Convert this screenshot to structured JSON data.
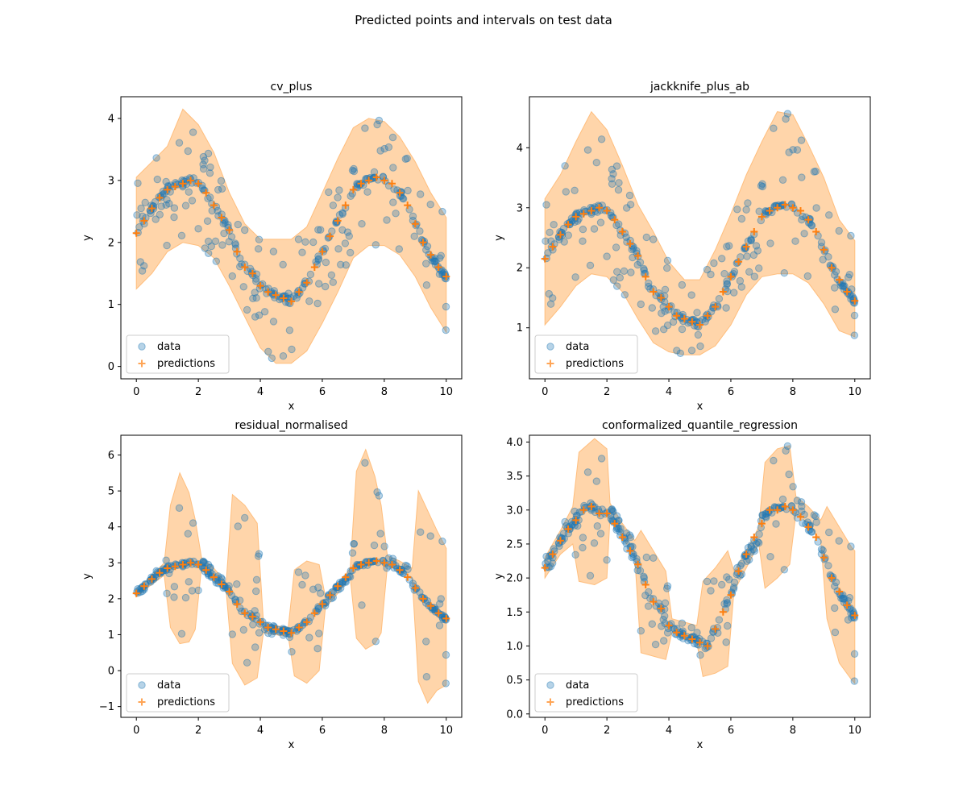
{
  "figure": {
    "suptitle": "Predicted points and intervals on test data"
  },
  "colors": {
    "data": "#1f77b4",
    "predictions": "#ff7f0e",
    "band": "#ffbe7d"
  },
  "chart_data": [
    {
      "type": "scatter",
      "title": "cv_plus",
      "xlabel": "x",
      "ylabel": "y",
      "xlim": [
        -0.5,
        10.5
      ],
      "ylim": [
        -0.2,
        4.35
      ],
      "xticks": [
        0,
        2,
        4,
        6,
        8,
        10
      ],
      "yticks": [
        0,
        1,
        2,
        3,
        4
      ],
      "legend": {
        "position": "lower-left",
        "entries": [
          "data",
          "predictions"
        ]
      },
      "band": {
        "x": [
          0,
          0.5,
          1,
          1.5,
          2,
          2.5,
          3,
          3.5,
          4,
          4.5,
          5,
          5.5,
          6,
          6.5,
          7,
          7.5,
          8,
          8.5,
          9,
          9.5,
          10
        ],
        "lower": [
          1.25,
          1.5,
          1.85,
          2.0,
          1.95,
          1.75,
          1.3,
          0.8,
          0.3,
          0.05,
          0.05,
          0.25,
          0.7,
          1.2,
          1.75,
          1.95,
          1.95,
          1.8,
          1.45,
          0.95,
          0.55
        ],
        "upper": [
          3.05,
          3.3,
          3.55,
          4.15,
          3.9,
          3.45,
          2.8,
          2.3,
          2.05,
          2.05,
          2.05,
          2.25,
          2.8,
          3.35,
          3.85,
          4.0,
          3.95,
          3.7,
          3.3,
          2.8,
          2.4
        ]
      },
      "predictions": {
        "x": [
          0,
          0.25,
          0.5,
          0.75,
          1,
          1.25,
          1.5,
          1.75,
          2,
          2.25,
          2.5,
          2.75,
          3,
          3.25,
          3.5,
          3.75,
          4,
          4.25,
          4.5,
          4.75,
          5,
          5.25,
          5.5,
          5.75,
          6,
          6.25,
          6.5,
          6.75,
          7,
          7.25,
          7.5,
          7.75,
          8,
          8.25,
          8.5,
          8.75,
          9,
          9.25,
          9.5,
          9.75,
          10
        ],
        "y": [
          2.15,
          2.35,
          2.55,
          2.72,
          2.85,
          2.9,
          2.95,
          3.0,
          2.95,
          2.8,
          2.6,
          2.4,
          2.2,
          1.85,
          1.6,
          1.5,
          1.3,
          1.2,
          1.15,
          1.1,
          1.05,
          1.2,
          1.35,
          1.6,
          1.85,
          2.1,
          2.35,
          2.6,
          2.85,
          2.95,
          3.0,
          3.05,
          3.0,
          2.95,
          2.8,
          2.6,
          2.3,
          2.0,
          1.8,
          1.6,
          1.45
        ]
      }
    },
    {
      "type": "scatter",
      "title": "jackknife_plus_ab",
      "xlabel": "x",
      "ylabel": "y",
      "xlim": [
        -0.5,
        10.5
      ],
      "ylim": [
        0.15,
        4.85
      ],
      "xticks": [
        0,
        2,
        4,
        6,
        8,
        10
      ],
      "yticks": [
        1,
        2,
        3,
        4
      ],
      "legend": {
        "position": "lower-left",
        "entries": [
          "data",
          "predictions"
        ]
      },
      "band": {
        "x": [
          0,
          0.5,
          1,
          1.5,
          2,
          2.5,
          3,
          3.5,
          4,
          4.5,
          5,
          5.5,
          6,
          6.5,
          7,
          7.5,
          8,
          8.5,
          9,
          9.5,
          10
        ],
        "lower": [
          1.05,
          1.35,
          1.7,
          1.9,
          1.85,
          1.6,
          1.15,
          0.75,
          0.6,
          0.55,
          0.55,
          0.7,
          1.05,
          1.55,
          1.85,
          1.9,
          1.9,
          1.75,
          1.4,
          0.95,
          0.85
        ],
        "upper": [
          3.15,
          3.55,
          4.1,
          4.6,
          4.3,
          3.7,
          3.05,
          2.6,
          2.1,
          1.8,
          1.8,
          2.3,
          2.9,
          3.55,
          4.1,
          4.6,
          4.55,
          4.05,
          3.5,
          2.8,
          2.45
        ]
      },
      "predictions": {
        "x": [
          0,
          0.25,
          0.5,
          0.75,
          1,
          1.25,
          1.5,
          1.75,
          2,
          2.25,
          2.5,
          2.75,
          3,
          3.25,
          3.5,
          3.75,
          4,
          4.25,
          4.5,
          4.75,
          5,
          5.25,
          5.5,
          5.75,
          6,
          6.25,
          6.5,
          6.75,
          7,
          7.25,
          7.5,
          7.75,
          8,
          8.25,
          8.5,
          8.75,
          9,
          9.25,
          9.5,
          9.75,
          10
        ],
        "y": [
          2.15,
          2.35,
          2.55,
          2.72,
          2.85,
          2.9,
          2.95,
          3.0,
          2.95,
          2.8,
          2.6,
          2.4,
          2.2,
          1.85,
          1.6,
          1.5,
          1.35,
          1.2,
          1.15,
          1.1,
          1.05,
          1.2,
          1.35,
          1.6,
          1.85,
          2.1,
          2.35,
          2.6,
          2.85,
          2.95,
          3.0,
          3.05,
          3.0,
          2.95,
          2.8,
          2.6,
          2.3,
          2.0,
          1.8,
          1.6,
          1.45
        ]
      }
    },
    {
      "type": "scatter",
      "title": "residual_normalised",
      "xlabel": "x",
      "ylabel": "y",
      "xlim": [
        -0.5,
        10.5
      ],
      "ylim": [
        -1.3,
        6.55
      ],
      "xticks": [
        0,
        2,
        4,
        6,
        8,
        10
      ],
      "yticks": [
        -1,
        0,
        1,
        2,
        3,
        4,
        5,
        6
      ],
      "legend": {
        "position": "lower-left",
        "entries": [
          "data",
          "predictions"
        ]
      },
      "band": {
        "x": [
          0,
          0.5,
          0.9,
          1.1,
          1.4,
          1.7,
          1.9,
          2.1,
          2.5,
          2.9,
          3.1,
          3.5,
          3.9,
          4.1,
          4.5,
          4.9,
          5.1,
          5.5,
          5.9,
          6.1,
          6.5,
          6.9,
          7.1,
          7.4,
          7.7,
          7.9,
          8.1,
          8.5,
          8.9,
          9.1,
          9.4,
          9.7,
          10
        ],
        "lower": [
          2.05,
          2.4,
          2.65,
          1.2,
          0.75,
          0.8,
          1.15,
          2.85,
          2.5,
          2.2,
          0.2,
          -0.4,
          -0.2,
          1.05,
          1.0,
          0.95,
          -0.15,
          -0.35,
          0.0,
          1.75,
          2.15,
          2.6,
          0.9,
          0.6,
          0.75,
          1.05,
          2.9,
          2.8,
          2.55,
          -0.3,
          -0.9,
          -0.55,
          -0.4
        ],
        "upper": [
          2.25,
          2.65,
          3.0,
          4.6,
          5.5,
          4.95,
          4.2,
          3.15,
          2.85,
          2.45,
          4.9,
          4.6,
          4.1,
          1.35,
          1.25,
          1.2,
          2.8,
          3.05,
          2.95,
          2.05,
          2.4,
          2.85,
          5.55,
          6.15,
          5.4,
          4.6,
          3.2,
          3.05,
          2.85,
          5.0,
          4.45,
          3.9,
          3.4
        ]
      },
      "predictions": {
        "x": [
          0,
          0.25,
          0.5,
          0.75,
          1,
          1.25,
          1.5,
          1.75,
          2,
          2.25,
          2.5,
          2.75,
          3,
          3.25,
          3.5,
          3.75,
          4,
          4.25,
          4.5,
          4.75,
          5,
          5.25,
          5.5,
          5.75,
          6,
          6.25,
          6.5,
          6.75,
          7,
          7.25,
          7.5,
          7.75,
          8,
          8.25,
          8.5,
          8.75,
          9,
          9.25,
          9.5,
          9.75,
          10
        ],
        "y": [
          2.15,
          2.35,
          2.55,
          2.72,
          2.85,
          2.9,
          2.95,
          3.0,
          2.95,
          2.8,
          2.6,
          2.4,
          2.2,
          1.85,
          1.6,
          1.5,
          1.35,
          1.2,
          1.15,
          1.1,
          1.05,
          1.2,
          1.35,
          1.6,
          1.85,
          2.1,
          2.35,
          2.6,
          2.85,
          2.95,
          3.0,
          3.05,
          3.0,
          2.95,
          2.8,
          2.6,
          2.3,
          2.0,
          1.8,
          1.6,
          1.45
        ]
      }
    },
    {
      "type": "scatter",
      "title": "conformalized_quantile_regression",
      "xlabel": "x",
      "ylabel": "y",
      "xlim": [
        -0.5,
        10.5
      ],
      "ylim": [
        -0.05,
        4.1
      ],
      "xticks": [
        0,
        2,
        4,
        6,
        8,
        10
      ],
      "yticks": [
        0.0,
        0.5,
        1.0,
        1.5,
        2.0,
        2.5,
        3.0,
        3.5,
        4.0
      ],
      "yticklabels": [
        "0.0",
        "0.5",
        "1.0",
        "1.5",
        "2.0",
        "2.5",
        "3.0",
        "3.5",
        "4.0"
      ],
      "legend": {
        "position": "lower-left",
        "entries": [
          "data",
          "predictions"
        ]
      },
      "band": {
        "x": [
          0,
          0.5,
          0.9,
          1.1,
          1.6,
          2.0,
          2.1,
          2.5,
          2.9,
          3.1,
          3.5,
          3.9,
          4.1,
          4.5,
          4.9,
          5.1,
          5.5,
          5.9,
          6.1,
          6.5,
          6.9,
          7.1,
          7.5,
          7.9,
          8.1,
          8.5,
          8.9,
          9.1,
          9.5,
          9.9,
          10
        ],
        "lower": [
          2.0,
          2.35,
          2.5,
          1.95,
          1.9,
          2.0,
          2.9,
          2.6,
          2.3,
          0.9,
          0.85,
          0.8,
          1.2,
          1.1,
          1.05,
          0.55,
          0.6,
          0.7,
          1.8,
          2.15,
          2.5,
          1.85,
          2.0,
          2.2,
          2.95,
          2.8,
          2.55,
          1.4,
          0.75,
          0.5,
          0.45
        ],
        "upper": [
          2.3,
          2.7,
          3.05,
          3.85,
          4.05,
          3.9,
          3.1,
          2.8,
          2.55,
          2.7,
          2.4,
          2.1,
          1.4,
          1.35,
          1.3,
          1.95,
          2.15,
          2.4,
          2.1,
          2.4,
          2.75,
          3.7,
          3.9,
          3.95,
          3.2,
          3.05,
          2.85,
          3.05,
          2.75,
          2.45,
          2.4
        ]
      },
      "predictions": {
        "x": [
          0,
          0.25,
          0.5,
          0.75,
          1,
          1.25,
          1.5,
          1.75,
          2,
          2.25,
          2.5,
          2.75,
          3,
          3.25,
          3.5,
          3.75,
          4,
          4.25,
          4.5,
          4.75,
          5,
          5.25,
          5.5,
          5.75,
          6,
          6.25,
          6.5,
          6.75,
          7,
          7.25,
          7.5,
          7.75,
          8,
          8.25,
          8.5,
          8.75,
          9,
          9.25,
          9.5,
          9.75,
          10
        ],
        "y": [
          2.15,
          2.35,
          2.55,
          2.72,
          2.85,
          3.0,
          3.05,
          2.95,
          2.95,
          2.8,
          2.6,
          2.4,
          2.2,
          1.9,
          1.65,
          1.55,
          1.3,
          1.2,
          1.15,
          1.1,
          1.05,
          1.0,
          1.25,
          1.5,
          1.75,
          2.1,
          2.35,
          2.6,
          2.8,
          3.0,
          3.0,
          3.05,
          3.0,
          2.9,
          2.75,
          2.6,
          2.3,
          2.0,
          1.8,
          1.6,
          1.45
        ]
      }
    }
  ]
}
